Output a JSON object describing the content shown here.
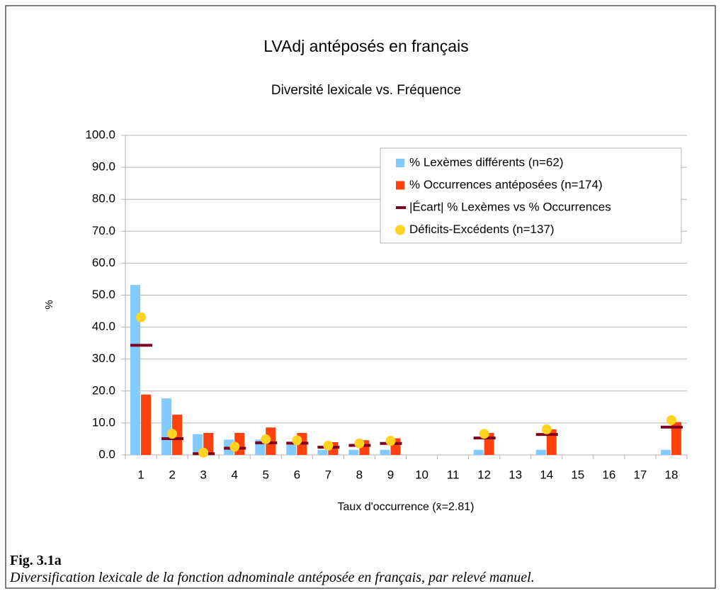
{
  "chart_data": {
    "type": "bar",
    "title": "LVAdj antéposés en français",
    "subtitle": "Diversité lexicale vs. Fréquence",
    "ylabel": "%",
    "xlabel": "Taux d'occurrence (x̄=2.81)",
    "categories": [
      "1",
      "2",
      "3",
      "4",
      "5",
      "6",
      "7",
      "8",
      "9",
      "10",
      "11",
      "12",
      "13",
      "14",
      "15",
      "16",
      "17",
      "18"
    ],
    "series": [
      {
        "name": "% Lexèmes différents (n=62)",
        "color": "#83caff",
        "mark": "bar",
        "values": [
          53.2,
          17.7,
          6.5,
          4.8,
          4.8,
          3.2,
          1.6,
          1.6,
          1.6,
          null,
          null,
          1.6,
          null,
          1.6,
          null,
          null,
          null,
          1.6
        ]
      },
      {
        "name": "% Occurrences antéposées (n=174)",
        "color": "#ff420e",
        "mark": "bar",
        "values": [
          18.9,
          12.6,
          6.9,
          6.9,
          8.6,
          6.9,
          4.0,
          4.6,
          5.2,
          null,
          null,
          6.9,
          null,
          8.0,
          null,
          null,
          null,
          10.3
        ]
      },
      {
        "name": "|Écart| % Lexèmes vs % Occurrences",
        "color": "#7e0021",
        "mark": "dash",
        "values": [
          34.3,
          5.1,
          0.4,
          2.1,
          3.8,
          3.7,
          2.4,
          3.0,
          3.6,
          null,
          null,
          5.3,
          null,
          6.4,
          null,
          null,
          null,
          8.7
        ]
      },
      {
        "name": "Déficits-Excédents (n=137)",
        "color": "#ffd320",
        "mark": "dot",
        "values": [
          43.1,
          6.6,
          0.7,
          2.6,
          4.9,
          4.6,
          2.9,
          3.6,
          4.4,
          null,
          null,
          6.6,
          null,
          8.0,
          null,
          null,
          null,
          10.9
        ]
      }
    ],
    "ylim": [
      0,
      100
    ],
    "yticks": [
      {
        "value": 0,
        "label": "0.0"
      },
      {
        "value": 10,
        "label": "10.0"
      },
      {
        "value": 20,
        "label": "20.0"
      },
      {
        "value": 30,
        "label": "30.0"
      },
      {
        "value": 40,
        "label": "40.0"
      },
      {
        "value": 50,
        "label": "50.0"
      },
      {
        "value": 60,
        "label": "60.0"
      },
      {
        "value": 70,
        "label": "70.0"
      },
      {
        "value": 80,
        "label": "80.0"
      },
      {
        "value": 90,
        "label": "90.0"
      },
      {
        "value": 100,
        "label": "100.0"
      }
    ],
    "grid": true,
    "legend": "top-right"
  },
  "caption": {
    "label": "Fig. 3.1a",
    "text": "Diversification lexicale de la fonction adnominale antéposée en français, par relevé manuel."
  }
}
